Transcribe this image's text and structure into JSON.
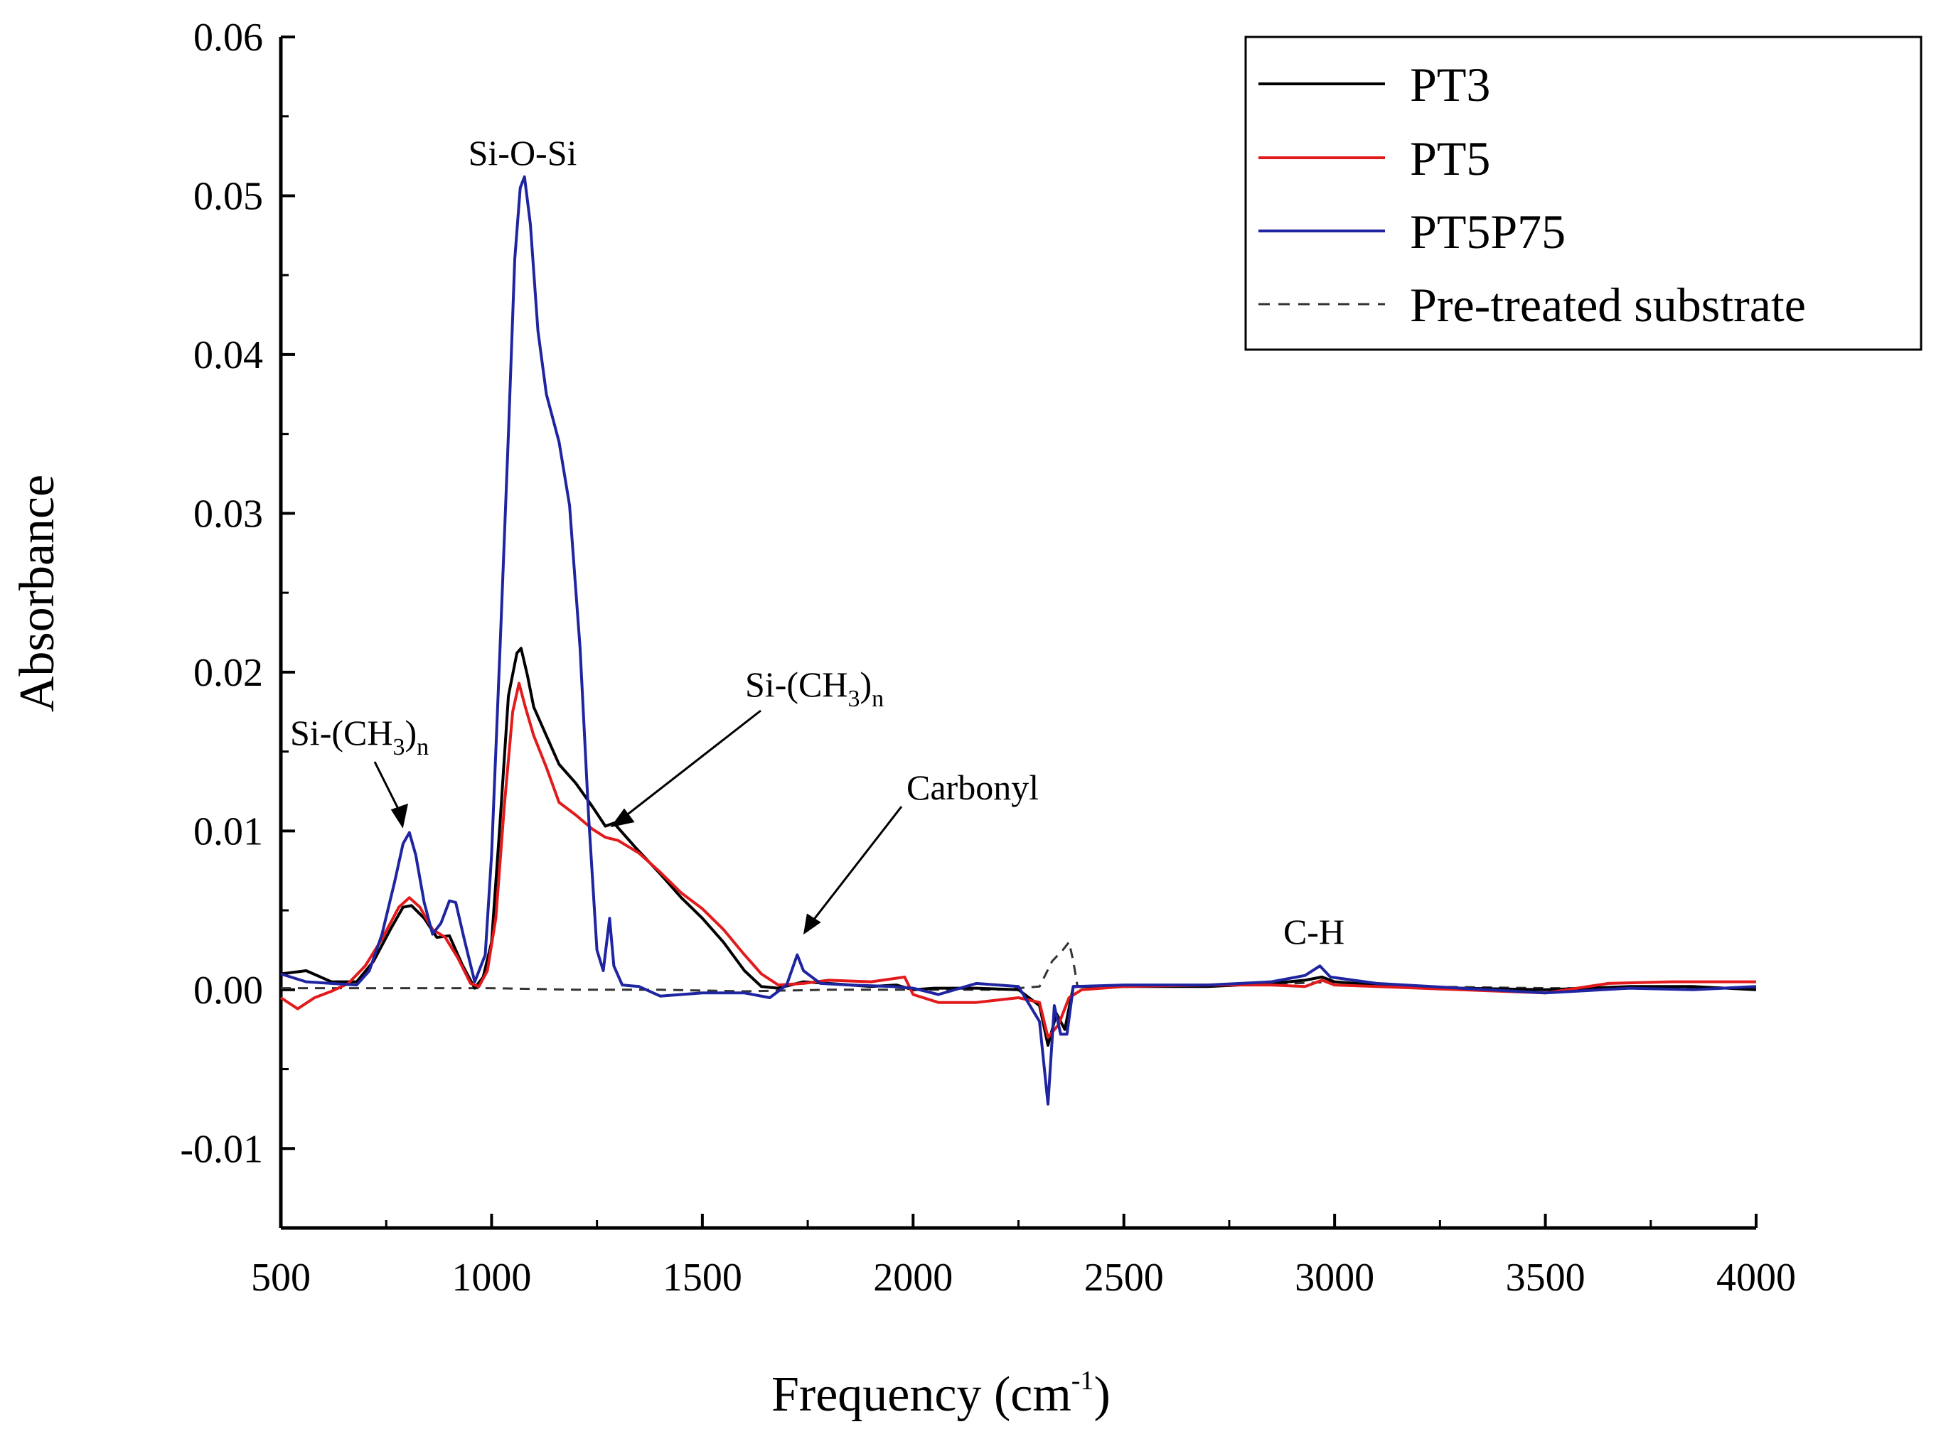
{
  "chart_data": {
    "type": "line",
    "title": "",
    "xlabel": "Frequency (cm",
    "xlabel_sup": "-1",
    "xlabel_close": ")",
    "ylabel": "Absorbance",
    "xlim": [
      500,
      4000
    ],
    "ylim": [
      -0.015,
      0.06
    ],
    "x_ticks": [
      500,
      1000,
      1500,
      2000,
      2500,
      3000,
      3500,
      4000
    ],
    "x_tick_labels": [
      "500",
      "1000",
      "1500",
      "2000",
      "2500",
      "3000",
      "3500",
      "4000"
    ],
    "y_ticks": [
      -0.01,
      0,
      0.01,
      0.02,
      0.03,
      0.04,
      0.05,
      0.06
    ],
    "y_tick_labels": [
      "-0.01",
      "0.00",
      "0.01",
      "0.02",
      "0.03",
      "0.04",
      "0.05",
      "0.06"
    ],
    "grid": false,
    "legend_position": "top-right",
    "series": [
      {
        "name": "PT3",
        "color": "#000000",
        "dash": false,
        "points": [
          [
            500,
            0.001
          ],
          [
            560,
            0.0012
          ],
          [
            620,
            0.0005
          ],
          [
            680,
            0.0005
          ],
          [
            720,
            0.0018
          ],
          [
            760,
            0.0038
          ],
          [
            790,
            0.0052
          ],
          [
            810,
            0.0053
          ],
          [
            840,
            0.0045
          ],
          [
            870,
            0.0033
          ],
          [
            900,
            0.0034
          ],
          [
            930,
            0.0016
          ],
          [
            960,
            0.0001
          ],
          [
            980,
            0.0008
          ],
          [
            1000,
            0.003
          ],
          [
            1020,
            0.0105
          ],
          [
            1040,
            0.0185
          ],
          [
            1060,
            0.0212
          ],
          [
            1070,
            0.0215
          ],
          [
            1085,
            0.0198
          ],
          [
            1100,
            0.0178
          ],
          [
            1130,
            0.016
          ],
          [
            1160,
            0.0142
          ],
          [
            1200,
            0.013
          ],
          [
            1240,
            0.0115
          ],
          [
            1270,
            0.0103
          ],
          [
            1290,
            0.0105
          ],
          [
            1340,
            0.009
          ],
          [
            1400,
            0.0073
          ],
          [
            1450,
            0.0058
          ],
          [
            1500,
            0.0045
          ],
          [
            1550,
            0.003
          ],
          [
            1600,
            0.0012
          ],
          [
            1640,
            0.0002
          ],
          [
            1680,
            0.0001
          ],
          [
            1740,
            0.0005
          ],
          [
            1800,
            0.0004
          ],
          [
            1900,
            0.0002
          ],
          [
            1960,
            0.0003
          ],
          [
            2000,
            0.0
          ],
          [
            2050,
            0.0001
          ],
          [
            2150,
            0.0001
          ],
          [
            2250,
            0.0
          ],
          [
            2300,
            -0.001
          ],
          [
            2320,
            -0.0035
          ],
          [
            2340,
            -0.0015
          ],
          [
            2360,
            -0.0025
          ],
          [
            2380,
            0.0002
          ],
          [
            2500,
            0.0002
          ],
          [
            2700,
            0.0002
          ],
          [
            2850,
            0.0004
          ],
          [
            2930,
            0.0006
          ],
          [
            2970,
            0.0008
          ],
          [
            3000,
            0.0005
          ],
          [
            3100,
            0.0003
          ],
          [
            3300,
            0.0001
          ],
          [
            3500,
            0.0
          ],
          [
            3700,
            0.0002
          ],
          [
            3850,
            0.0002
          ],
          [
            4000,
            0.0
          ]
        ]
      },
      {
        "name": "PT5",
        "color": "#e31a1c",
        "dash": false,
        "points": [
          [
            500,
            -0.0005
          ],
          [
            540,
            -0.0012
          ],
          [
            580,
            -0.0005
          ],
          [
            620,
            -0.0001
          ],
          [
            660,
            0.0004
          ],
          [
            700,
            0.0015
          ],
          [
            740,
            0.0032
          ],
          [
            780,
            0.0052
          ],
          [
            805,
            0.0058
          ],
          [
            830,
            0.0052
          ],
          [
            860,
            0.0038
          ],
          [
            890,
            0.0033
          ],
          [
            920,
            0.002
          ],
          [
            950,
            0.0004
          ],
          [
            970,
            0.0002
          ],
          [
            990,
            0.0012
          ],
          [
            1010,
            0.0045
          ],
          [
            1030,
            0.0115
          ],
          [
            1050,
            0.0175
          ],
          [
            1065,
            0.0193
          ],
          [
            1080,
            0.0178
          ],
          [
            1100,
            0.016
          ],
          [
            1130,
            0.014
          ],
          [
            1160,
            0.0118
          ],
          [
            1200,
            0.011
          ],
          [
            1240,
            0.0101
          ],
          [
            1270,
            0.0096
          ],
          [
            1300,
            0.0094
          ],
          [
            1350,
            0.0086
          ],
          [
            1400,
            0.0074
          ],
          [
            1450,
            0.0061
          ],
          [
            1500,
            0.0051
          ],
          [
            1550,
            0.0038
          ],
          [
            1600,
            0.0022
          ],
          [
            1640,
            0.001
          ],
          [
            1680,
            0.0003
          ],
          [
            1740,
            0.0004
          ],
          [
            1800,
            0.0006
          ],
          [
            1900,
            0.0005
          ],
          [
            1980,
            0.0008
          ],
          [
            2000,
            -0.0003
          ],
          [
            2060,
            -0.0008
          ],
          [
            2150,
            -0.0008
          ],
          [
            2250,
            -0.0005
          ],
          [
            2300,
            -0.0008
          ],
          [
            2320,
            -0.003
          ],
          [
            2345,
            -0.0022
          ],
          [
            2370,
            -0.0005
          ],
          [
            2400,
            0.0
          ],
          [
            2500,
            0.0002
          ],
          [
            2700,
            0.0003
          ],
          [
            2850,
            0.0003
          ],
          [
            2930,
            0.0002
          ],
          [
            2970,
            0.0006
          ],
          [
            3000,
            0.0003
          ],
          [
            3100,
            0.0002
          ],
          [
            3300,
            0.0
          ],
          [
            3500,
            -0.0002
          ],
          [
            3650,
            0.0004
          ],
          [
            3800,
            0.0005
          ],
          [
            4000,
            0.0005
          ]
        ]
      },
      {
        "name": "PT5P75",
        "color": "#1f24a0",
        "dash": false,
        "points": [
          [
            500,
            0.001
          ],
          [
            560,
            0.0005
          ],
          [
            620,
            0.0004
          ],
          [
            680,
            0.0003
          ],
          [
            710,
            0.0012
          ],
          [
            740,
            0.0035
          ],
          [
            770,
            0.0068
          ],
          [
            790,
            0.0092
          ],
          [
            805,
            0.0099
          ],
          [
            820,
            0.0085
          ],
          [
            840,
            0.0055
          ],
          [
            860,
            0.0035
          ],
          [
            880,
            0.0042
          ],
          [
            900,
            0.0056
          ],
          [
            915,
            0.0055
          ],
          [
            935,
            0.0032
          ],
          [
            960,
            0.0005
          ],
          [
            985,
            0.0022
          ],
          [
            1000,
            0.0085
          ],
          [
            1020,
            0.0215
          ],
          [
            1040,
            0.035
          ],
          [
            1055,
            0.046
          ],
          [
            1068,
            0.0505
          ],
          [
            1078,
            0.0512
          ],
          [
            1092,
            0.0482
          ],
          [
            1110,
            0.0415
          ],
          [
            1130,
            0.0375
          ],
          [
            1160,
            0.0345
          ],
          [
            1185,
            0.0305
          ],
          [
            1210,
            0.0215
          ],
          [
            1230,
            0.011
          ],
          [
            1250,
            0.0025
          ],
          [
            1265,
            0.0012
          ],
          [
            1280,
            0.0045
          ],
          [
            1290,
            0.0015
          ],
          [
            1310,
            0.0003
          ],
          [
            1350,
            0.0002
          ],
          [
            1400,
            -0.0004
          ],
          [
            1500,
            -0.0002
          ],
          [
            1600,
            -0.0002
          ],
          [
            1660,
            -0.0005
          ],
          [
            1700,
            0.0003
          ],
          [
            1725,
            0.0022
          ],
          [
            1740,
            0.0012
          ],
          [
            1780,
            0.0004
          ],
          [
            1850,
            0.0003
          ],
          [
            1950,
            0.0002
          ],
          [
            2000,
            0.0001
          ],
          [
            2060,
            -0.0003
          ],
          [
            2150,
            0.0004
          ],
          [
            2250,
            0.0002
          ],
          [
            2300,
            -0.002
          ],
          [
            2320,
            -0.0072
          ],
          [
            2335,
            -0.001
          ],
          [
            2350,
            -0.0028
          ],
          [
            2365,
            -0.0028
          ],
          [
            2380,
            0.0002
          ],
          [
            2500,
            0.0003
          ],
          [
            2700,
            0.0003
          ],
          [
            2850,
            0.0005
          ],
          [
            2930,
            0.0009
          ],
          [
            2965,
            0.0015
          ],
          [
            2990,
            0.0008
          ],
          [
            3100,
            0.0004
          ],
          [
            3300,
            0.0001
          ],
          [
            3500,
            -0.0002
          ],
          [
            3700,
            0.0001
          ],
          [
            3850,
            0.0
          ],
          [
            4000,
            0.0002
          ]
        ]
      },
      {
        "name": "Pre-treated substrate",
        "color": "#333333",
        "dash": true,
        "points": [
          [
            500,
            0.0001
          ],
          [
            700,
            0.0001
          ],
          [
            900,
            0.0001
          ],
          [
            1000,
            0.0001
          ],
          [
            1200,
            0.0
          ],
          [
            1400,
            0.0
          ],
          [
            1600,
            -0.0001
          ],
          [
            1800,
            0.0
          ],
          [
            2000,
            0.0
          ],
          [
            2200,
            0.0
          ],
          [
            2300,
            0.0002
          ],
          [
            2330,
            0.0018
          ],
          [
            2355,
            0.0025
          ],
          [
            2370,
            0.003
          ],
          [
            2380,
            0.0018
          ],
          [
            2390,
            0.0002
          ],
          [
            2500,
            0.0002
          ],
          [
            2700,
            0.0002
          ],
          [
            2900,
            0.0004
          ],
          [
            3000,
            0.0005
          ],
          [
            3200,
            0.0002
          ],
          [
            3500,
            0.0001
          ],
          [
            3800,
            0.0001
          ],
          [
            4000,
            0.0001
          ]
        ]
      }
    ],
    "annotations": [
      {
        "id": "sio",
        "text": "Si-O-Si"
      },
      {
        "id": "sich3a",
        "text": "Si-(CH",
        "sub1": "3",
        "close": ")",
        "sub2": "n"
      },
      {
        "id": "sich3b",
        "text": "Si-(CH",
        "sub1": "3",
        "close": ")",
        "sub2": "n"
      },
      {
        "id": "carbonyl",
        "text": "Carbonyl"
      },
      {
        "id": "ch",
        "text": "C-H"
      }
    ]
  }
}
